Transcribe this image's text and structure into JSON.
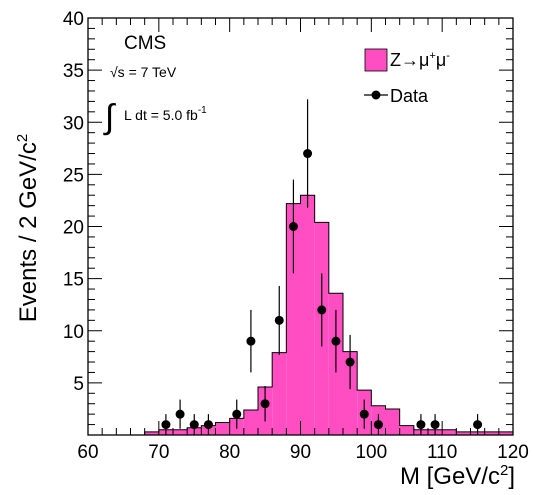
{
  "chart_data": {
    "type": "bar",
    "xlabel": "M [GeV/c",
    "xlabel_sup": "2",
    "xlabel_tail": "]",
    "ylabel": "Events / 2 GeV/c",
    "ylabel_sup": "2",
    "xlim": [
      60,
      120
    ],
    "ylim": [
      0,
      40
    ],
    "x_ticks": [
      60,
      70,
      80,
      90,
      100,
      110,
      120
    ],
    "y_ticks": [
      5,
      10,
      15,
      20,
      25,
      30,
      35,
      40
    ],
    "grid": false,
    "legend_position": "top-right",
    "annotations": {
      "experiment": "CMS",
      "energy": "√s = 7 TeV",
      "lumi_prefix": "∫",
      "lumi": "L dt = 5.0 fb",
      "lumi_sup": "-1"
    },
    "series": [
      {
        "name": "Z→μ⁺μ⁻",
        "legend_label": "Z→μ",
        "legend_sup1": "+",
        "legend_mid": "μ",
        "legend_sup2": "-",
        "kind": "histogram",
        "color": "#ff4ec2",
        "bin_edges": [
          60,
          62,
          64,
          66,
          68,
          70,
          72,
          74,
          76,
          78,
          80,
          82,
          84,
          86,
          88,
          90,
          92,
          94,
          96,
          98,
          100,
          102,
          104,
          106,
          108,
          110,
          112,
          114,
          116,
          118,
          120
        ],
        "values": [
          0,
          0,
          0,
          0,
          0.3,
          0.5,
          0.5,
          0.7,
          0.9,
          1.2,
          1.6,
          2.4,
          4.6,
          7.9,
          22.2,
          23.0,
          20.4,
          13.6,
          8.0,
          4.3,
          2.8,
          2.5,
          0.9,
          0.5,
          0.5,
          0.5,
          0.3,
          0.3,
          0.3,
          0.3
        ]
      },
      {
        "name": "Data",
        "kind": "points",
        "color": "#000000",
        "points": [
          {
            "x": 71,
            "y": 1,
            "err": 1.0
          },
          {
            "x": 73,
            "y": 2,
            "err": 1.4
          },
          {
            "x": 75,
            "y": 1,
            "err": 1.0
          },
          {
            "x": 77,
            "y": 1,
            "err": 1.0
          },
          {
            "x": 81,
            "y": 2,
            "err": 1.4
          },
          {
            "x": 83,
            "y": 9,
            "err": 3.0
          },
          {
            "x": 85,
            "y": 3,
            "err": 1.7
          },
          {
            "x": 87,
            "y": 11,
            "err": 3.3
          },
          {
            "x": 89,
            "y": 20,
            "err": 4.5
          },
          {
            "x": 91,
            "y": 27,
            "err": 5.2
          },
          {
            "x": 93,
            "y": 12,
            "err": 3.5
          },
          {
            "x": 95,
            "y": 9,
            "err": 3.0
          },
          {
            "x": 97,
            "y": 7,
            "err": 2.6
          },
          {
            "x": 99,
            "y": 2,
            "err": 1.4
          },
          {
            "x": 101,
            "y": 1,
            "err": 1.0
          },
          {
            "x": 107,
            "y": 1,
            "err": 1.0
          },
          {
            "x": 109,
            "y": 1,
            "err": 1.0
          },
          {
            "x": 115,
            "y": 1,
            "err": 1.0
          }
        ]
      }
    ]
  }
}
